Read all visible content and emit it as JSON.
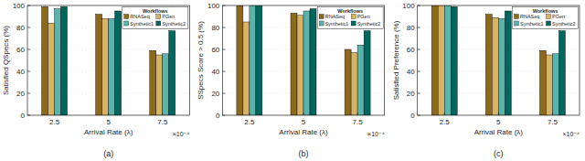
{
  "chart_data": [
    {
      "type": "bar",
      "caption": "(a)",
      "x_label": "Arrival Rate (λ)",
      "y_label": "Satisfied QSpecs (%)",
      "annotation": "×10⁻⁴",
      "categories": [
        "2.5",
        "5",
        "7.5"
      ],
      "series": [
        {
          "name": "RNASeq",
          "color": "#8c6a1c",
          "values": [
            99,
            92,
            59
          ]
        },
        {
          "name": "PGen",
          "color": "#d8b365",
          "values": [
            84,
            88,
            55
          ]
        },
        {
          "name": "Synthetic1",
          "color": "#5ab4ac",
          "values": [
            97,
            88,
            56
          ]
        },
        {
          "name": "Synthetic2",
          "color": "#01665e",
          "values": [
            99,
            95,
            77
          ]
        }
      ],
      "ylim": [
        0,
        100
      ],
      "yticks": [
        0,
        20,
        40,
        60,
        80,
        100
      ],
      "grid": true,
      "legend": "upper right",
      "legend_title": "Workflows"
    },
    {
      "type": "bar",
      "caption": "(b)",
      "x_label": "Arrival Rate (λ)",
      "y_label": "SSpecs Score > 0.5 (%)",
      "annotation": "×10⁻⁴",
      "categories": [
        "2.5",
        "5",
        "7.5"
      ],
      "series": [
        {
          "name": "RNASeq",
          "color": "#8c6a1c",
          "values": [
            100,
            93,
            60
          ]
        },
        {
          "name": "PGen",
          "color": "#d8b365",
          "values": [
            85,
            91,
            57
          ]
        },
        {
          "name": "Synthetic1",
          "color": "#5ab4ac",
          "values": [
            100,
            95,
            64
          ]
        },
        {
          "name": "Synthetic2",
          "color": "#01665e",
          "values": [
            100,
            97,
            77
          ]
        }
      ],
      "ylim": [
        0,
        100
      ],
      "yticks": [
        0,
        20,
        40,
        60,
        80,
        100
      ],
      "grid": true,
      "legend": "upper right",
      "legend_title": "Workflows"
    },
    {
      "type": "bar",
      "caption": "(c)",
      "x_label": "Arrival Rate (λ)",
      "y_label": "Satisfied Preference (%)",
      "annotation": "×10⁻⁴",
      "categories": [
        "2.5",
        "5",
        "7.5"
      ],
      "series": [
        {
          "name": "RNASeq",
          "color": "#8c6a1c",
          "values": [
            100,
            92,
            59
          ]
        },
        {
          "name": "PGen",
          "color": "#d8b365",
          "values": [
            100,
            89,
            55
          ]
        },
        {
          "name": "Synthetic1",
          "color": "#5ab4ac",
          "values": [
            100,
            88,
            56
          ]
        },
        {
          "name": "Synthetic2",
          "color": "#01665e",
          "values": [
            99,
            95,
            77
          ]
        }
      ],
      "ylim": [
        0,
        100
      ],
      "yticks": [
        0,
        20,
        40,
        60,
        80,
        100
      ],
      "grid": true,
      "legend": "upper right",
      "legend_title": "Workflows"
    }
  ]
}
